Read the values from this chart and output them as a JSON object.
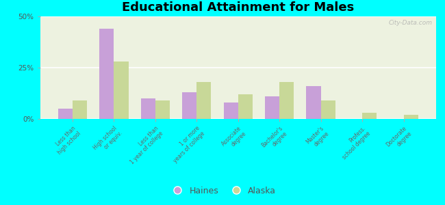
{
  "title": "Educational Attainment for Males",
  "categories": [
    "Less than\nhigh school",
    "High school\nor equiv.",
    "Less than\n1 year of college",
    "1 or more\nyears of college",
    "Associate\ndegree",
    "Bachelor's\ndegree",
    "Master's\ndegree",
    "Profess.\nschool degree",
    "Doctorate\ndegree"
  ],
  "haines_values": [
    5,
    44,
    10,
    13,
    8,
    11,
    16,
    0,
    0
  ],
  "alaska_values": [
    9,
    28,
    9,
    18,
    12,
    18,
    9,
    3,
    2
  ],
  "haines_color": "#c8a0d8",
  "alaska_color": "#c8d898",
  "background_color": "#00ffff",
  "plot_bg_color": "#edf2e0",
  "ylim": [
    0,
    50
  ],
  "yticks": [
    0,
    25,
    50
  ],
  "ytick_labels": [
    "0%",
    "25%",
    "50%"
  ],
  "legend_labels": [
    "Haines",
    "Alaska"
  ],
  "bar_width": 0.35,
  "watermark": "City-Data.com"
}
